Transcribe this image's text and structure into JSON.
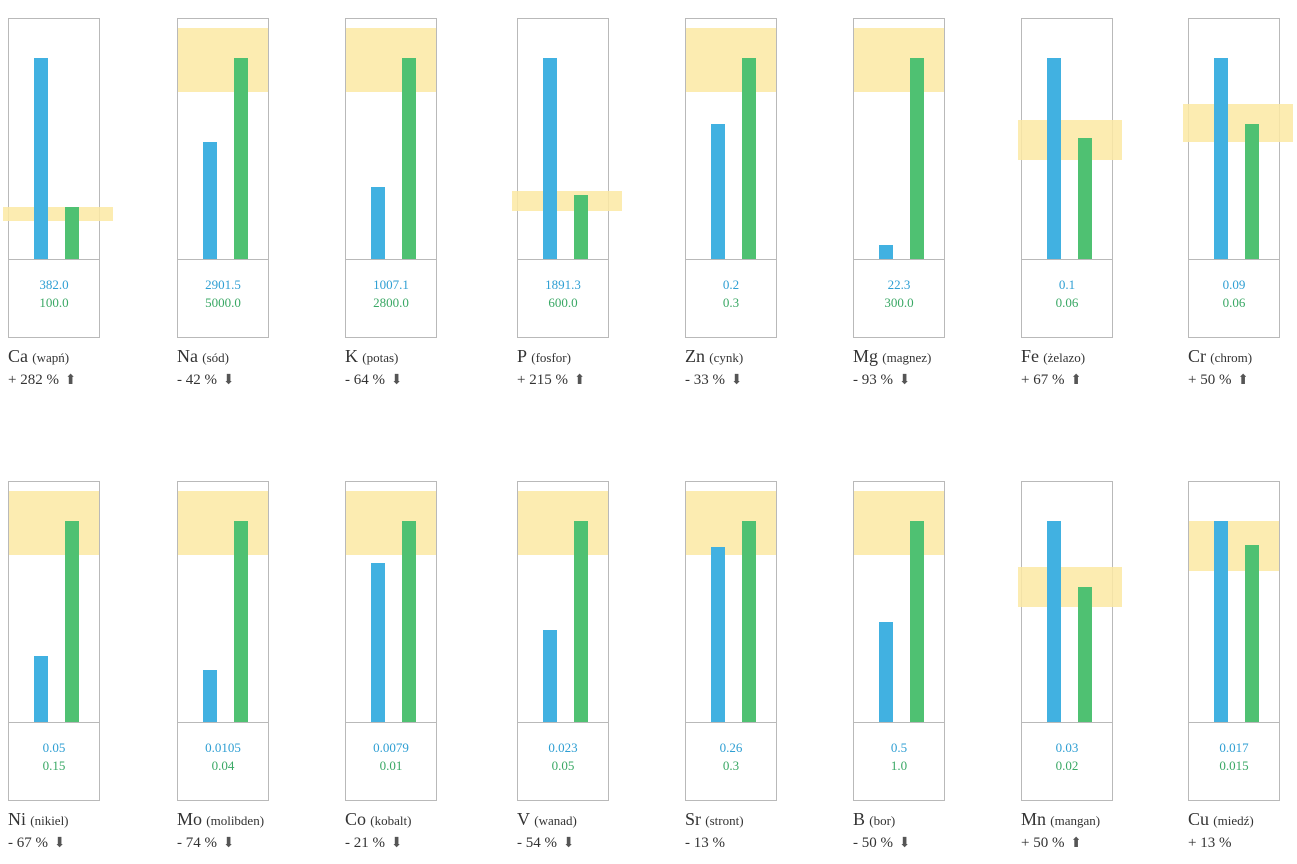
{
  "chart_data": {
    "type": "bar",
    "series": [
      {
        "color": "#41b1e1"
      },
      {
        "color": "#4fc172"
      }
    ],
    "band_color": "#fbe9a3",
    "panels": [
      {
        "symbol": "Ca",
        "name": "(wapń)",
        "blue_label": "382.0",
        "green_label": "100.0",
        "blue_value": 382.0,
        "green_value": 100.0,
        "delta": "+ 282 %",
        "arrow": "up",
        "arrow_icon": "⬆",
        "band": [
          0.19,
          0.26
        ],
        "blue_bar": 1.0,
        "green_bar": 0.26
      },
      {
        "symbol": "Na",
        "name": "(sód)",
        "blue_label": "2901.5",
        "green_label": "5000.0",
        "blue_value": 2901.5,
        "green_value": 5000.0,
        "delta": "- 42 %",
        "arrow": "down",
        "arrow_icon": "⬇",
        "band": [
          0.83,
          1.15
        ],
        "blue_bar": 0.58,
        "green_bar": 1.0
      },
      {
        "symbol": "K",
        "name": "(potas)",
        "blue_label": "1007.1",
        "green_label": "2800.0",
        "blue_value": 1007.1,
        "green_value": 2800.0,
        "delta": "- 64 %",
        "arrow": "down",
        "arrow_icon": "⬇",
        "band": [
          0.83,
          1.15
        ],
        "blue_bar": 0.36,
        "green_bar": 1.0
      },
      {
        "symbol": "P",
        "name": "(fosfor)",
        "blue_label": "1891.3",
        "green_label": "600.0",
        "blue_value": 1891.3,
        "green_value": 600.0,
        "delta": "+ 215 %",
        "arrow": "up",
        "arrow_icon": "⬆",
        "band": [
          0.24,
          0.34
        ],
        "blue_bar": 1.0,
        "green_bar": 0.32
      },
      {
        "symbol": "Zn",
        "name": "(cynk)",
        "blue_label": "0.2",
        "green_label": "0.3",
        "blue_value": 0.2,
        "green_value": 0.3,
        "delta": "- 33 %",
        "arrow": "down",
        "arrow_icon": "⬇",
        "band": [
          0.83,
          1.15
        ],
        "blue_bar": 0.67,
        "green_bar": 1.0
      },
      {
        "symbol": "Mg",
        "name": "(magnez)",
        "blue_label": "22.3",
        "green_label": "300.0",
        "blue_value": 22.3,
        "green_value": 300.0,
        "delta": "- 93 %",
        "arrow": "down",
        "arrow_icon": "⬇",
        "band": [
          0.83,
          1.15
        ],
        "blue_bar": 0.07,
        "green_bar": 1.0
      },
      {
        "symbol": "Fe",
        "name": "(żelazo)",
        "blue_label": "0.1",
        "green_label": "0.06",
        "blue_value": 0.1,
        "green_value": 0.06,
        "delta": "+ 67 %",
        "arrow": "up",
        "arrow_icon": "⬆",
        "band": [
          0.49,
          0.69
        ],
        "blue_bar": 1.0,
        "green_bar": 0.6
      },
      {
        "symbol": "Cr",
        "name": "(chrom)",
        "blue_label": "0.09",
        "green_label": "0.06",
        "blue_value": 0.09,
        "green_value": 0.06,
        "delta": "+ 50 %",
        "arrow": "up",
        "arrow_icon": "⬆",
        "band": [
          0.58,
          0.77
        ],
        "blue_bar": 1.0,
        "green_bar": 0.67
      },
      {
        "symbol": "Ni",
        "name": "(nikiel)",
        "blue_label": "0.05",
        "green_label": "0.15",
        "blue_value": 0.05,
        "green_value": 0.15,
        "delta": "- 67 %",
        "arrow": "down",
        "arrow_icon": "⬇",
        "band": [
          0.83,
          1.15
        ],
        "blue_bar": 0.33,
        "green_bar": 1.0
      },
      {
        "symbol": "Mo",
        "name": "(molibden)",
        "blue_label": "0.0105",
        "green_label": "0.04",
        "blue_value": 0.0105,
        "green_value": 0.04,
        "delta": "- 74 %",
        "arrow": "down",
        "arrow_icon": "⬇",
        "band": [
          0.83,
          1.15
        ],
        "blue_bar": 0.26,
        "green_bar": 1.0
      },
      {
        "symbol": "Co",
        "name": "(kobalt)",
        "blue_label": "0.0079",
        "green_label": "0.01",
        "blue_value": 0.0079,
        "green_value": 0.01,
        "delta": "- 21 %",
        "arrow": "down",
        "arrow_icon": "⬇",
        "band": [
          0.83,
          1.15
        ],
        "blue_bar": 0.79,
        "green_bar": 1.0
      },
      {
        "symbol": "V",
        "name": "(wanad)",
        "blue_label": "0.023",
        "green_label": "0.05",
        "blue_value": 0.023,
        "green_value": 0.05,
        "delta": "- 54 %",
        "arrow": "down",
        "arrow_icon": "⬇",
        "band": [
          0.83,
          1.15
        ],
        "blue_bar": 0.46,
        "green_bar": 1.0
      },
      {
        "symbol": "Sr",
        "name": "(stront)",
        "blue_label": "0.26",
        "green_label": "0.3",
        "blue_value": 0.26,
        "green_value": 0.3,
        "delta": "- 13 %",
        "arrow": "none",
        "arrow_icon": "",
        "band": [
          0.83,
          1.15
        ],
        "blue_bar": 0.87,
        "green_bar": 1.0
      },
      {
        "symbol": "B",
        "name": "(bor)",
        "blue_label": "0.5",
        "green_label": "1.0",
        "blue_value": 0.5,
        "green_value": 1.0,
        "delta": "- 50 %",
        "arrow": "down",
        "arrow_icon": "⬇",
        "band": [
          0.83,
          1.15
        ],
        "blue_bar": 0.5,
        "green_bar": 1.0
      },
      {
        "symbol": "Mn",
        "name": "(mangan)",
        "blue_label": "0.03",
        "green_label": "0.02",
        "blue_value": 0.03,
        "green_value": 0.02,
        "delta": "+ 50 %",
        "arrow": "up",
        "arrow_icon": "⬆",
        "band": [
          0.57,
          0.77
        ],
        "blue_bar": 1.0,
        "green_bar": 0.67
      },
      {
        "symbol": "Cu",
        "name": "(miedź)",
        "blue_label": "0.017",
        "green_label": "0.015",
        "blue_value": 0.017,
        "green_value": 0.015,
        "delta": "+ 13 %",
        "arrow": "none",
        "arrow_icon": "",
        "band": [
          0.75,
          1.0
        ],
        "blue_bar": 1.0,
        "green_bar": 0.88
      }
    ]
  }
}
